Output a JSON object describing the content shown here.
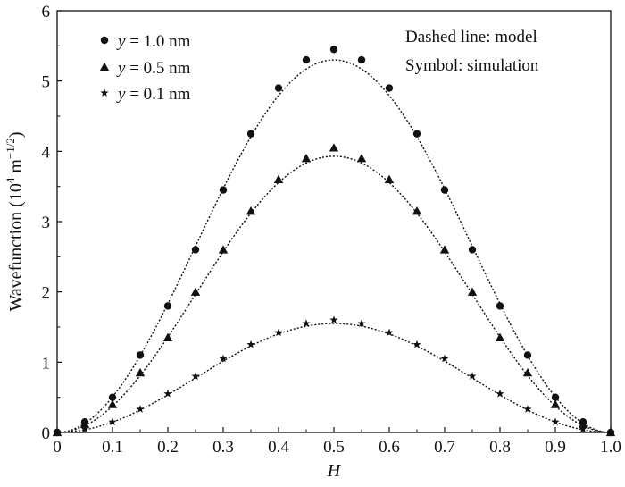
{
  "chart_data": {
    "type": "scatter",
    "title": "",
    "xlabel": "H",
    "ylabel": {
      "prefix": "Wavefunction (10",
      "exp1": "4",
      "middle": " m",
      "exp2": "−1/2",
      "suffix": ")"
    },
    "xlim": [
      0,
      1.0
    ],
    "ylim": [
      0,
      6
    ],
    "xticks": [
      "0",
      "0.1",
      "0.2",
      "0.3",
      "0.4",
      "0.5",
      "0.6",
      "0.7",
      "0.8",
      "0.9",
      "1.0"
    ],
    "yticks": [
      "0",
      "1",
      "2",
      "3",
      "4",
      "5",
      "6"
    ],
    "grid": false,
    "legend_position": "top-left",
    "legend_entries": [
      {
        "var": "y",
        "rest": " = 1.0 nm",
        "marker": "circle"
      },
      {
        "var": "y",
        "rest": " = 0.5 nm",
        "marker": "triangle"
      },
      {
        "var": "y",
        "rest": " = 0.1 nm",
        "marker": "star"
      }
    ],
    "annotations": [
      "Dashed line: model",
      "Symbol: simulation"
    ],
    "x": [
      0,
      0.05,
      0.1,
      0.15,
      0.2,
      0.25,
      0.3,
      0.35,
      0.4,
      0.45,
      0.5,
      0.55,
      0.6,
      0.65,
      0.7,
      0.75,
      0.8,
      0.85,
      0.9,
      0.95,
      1.0
    ],
    "series": [
      {
        "label": "y = 1.0 nm",
        "marker": "circle",
        "symbol_values": [
          0,
          0.15,
          0.5,
          1.1,
          1.8,
          2.6,
          3.45,
          4.25,
          4.9,
          5.3,
          5.45,
          5.3,
          4.9,
          4.25,
          3.45,
          2.6,
          1.8,
          1.1,
          0.5,
          0.15,
          0
        ],
        "model_amplitude": 5.3
      },
      {
        "label": "y = 0.5 nm",
        "marker": "triangle",
        "symbol_values": [
          0,
          0.12,
          0.4,
          0.85,
          1.35,
          2.0,
          2.6,
          3.15,
          3.6,
          3.9,
          4.05,
          3.9,
          3.6,
          3.15,
          2.6,
          2.0,
          1.35,
          0.85,
          0.4,
          0.12,
          0
        ],
        "model_amplitude": 3.93
      },
      {
        "label": "y = 0.1 nm",
        "marker": "star",
        "symbol_values": [
          0,
          0.05,
          0.15,
          0.33,
          0.55,
          0.8,
          1.05,
          1.25,
          1.42,
          1.55,
          1.6,
          1.55,
          1.42,
          1.25,
          1.05,
          0.8,
          0.55,
          0.33,
          0.15,
          0.05,
          0
        ],
        "model_amplitude": 1.55
      }
    ],
    "colors": {
      "ink": "#111111",
      "background": "#ffffff"
    }
  }
}
